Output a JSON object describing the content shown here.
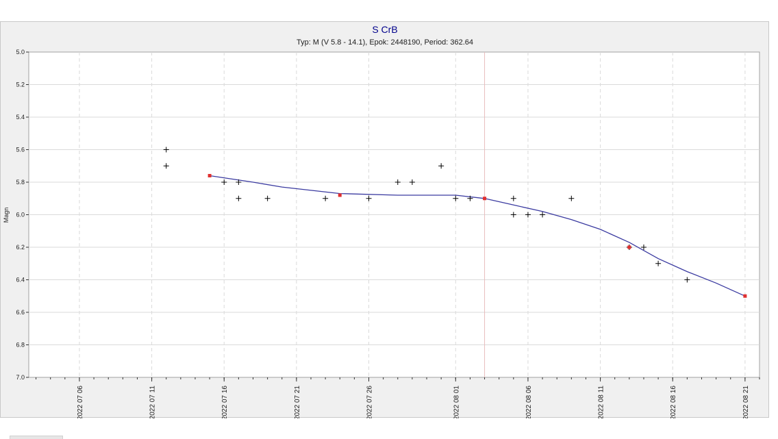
{
  "chart_data": {
    "type": "scatter",
    "title": "S CrB",
    "subtitle": "Typ: M (V 5.8 - 14.1), Epok: 2448190, Period: 362.64",
    "xlabel": "",
    "ylabel": "Magn",
    "x_scale": "date",
    "xlim": [
      "2022-07-02T12:00",
      "2022-08-22T00:00"
    ],
    "ylim": [
      5.0,
      7.0
    ],
    "y_inverted": true,
    "y_ticks": [
      "5.0",
      "5.2",
      "5.4",
      "5.6",
      "5.8",
      "6.0",
      "6.2",
      "6.4",
      "6.6",
      "6.8",
      "7.0"
    ],
    "x_ticks": [
      {
        "date": "2022-07-06",
        "label": "2022 07 06"
      },
      {
        "date": "2022-07-11",
        "label": "2022 07 11"
      },
      {
        "date": "2022-07-16",
        "label": "2022 07 16"
      },
      {
        "date": "2022-07-21",
        "label": "2022 07 21"
      },
      {
        "date": "2022-07-26",
        "label": "2022 07 26"
      },
      {
        "date": "2022-08-01",
        "label": "2022 08 01"
      },
      {
        "date": "2022-08-06",
        "label": "2022 08 06"
      },
      {
        "date": "2022-08-11",
        "label": "2022 08 11"
      },
      {
        "date": "2022-08-16",
        "label": "2022 08 16"
      },
      {
        "date": "2022-08-21",
        "label": "2022 08 21"
      }
    ],
    "highlight_date": "2022-08-03",
    "grid": true,
    "series": [
      {
        "marker": "plus",
        "color": "#000000",
        "points": [
          {
            "x": "2022-07-12",
            "y": 5.6
          },
          {
            "x": "2022-07-12",
            "y": 5.7
          },
          {
            "x": "2022-07-16",
            "y": 5.8
          },
          {
            "x": "2022-07-17",
            "y": 5.8
          },
          {
            "x": "2022-07-17",
            "y": 5.9
          },
          {
            "x": "2022-07-19",
            "y": 5.9
          },
          {
            "x": "2022-07-23",
            "y": 5.9
          },
          {
            "x": "2022-07-26",
            "y": 5.9
          },
          {
            "x": "2022-07-28",
            "y": 5.8
          },
          {
            "x": "2022-07-29",
            "y": 5.8
          },
          {
            "x": "2022-07-31",
            "y": 5.7
          },
          {
            "x": "2022-08-01",
            "y": 5.9
          },
          {
            "x": "2022-08-02",
            "y": 5.9
          },
          {
            "x": "2022-08-05",
            "y": 5.9
          },
          {
            "x": "2022-08-05",
            "y": 6.0
          },
          {
            "x": "2022-08-06",
            "y": 6.0
          },
          {
            "x": "2022-08-07",
            "y": 6.0
          },
          {
            "x": "2022-08-09",
            "y": 5.9
          },
          {
            "x": "2022-08-13",
            "y": 6.2
          },
          {
            "x": "2022-08-14",
            "y": 6.2
          },
          {
            "x": "2022-08-15",
            "y": 6.3
          },
          {
            "x": "2022-08-17",
            "y": 6.4
          }
        ]
      },
      {
        "marker": "square",
        "color": "#e03030",
        "points": [
          {
            "x": "2022-07-15",
            "y": 5.76
          },
          {
            "x": "2022-07-24",
            "y": 5.88
          },
          {
            "x": "2022-08-03",
            "y": 5.9
          },
          {
            "x": "2022-08-13",
            "y": 6.2
          },
          {
            "x": "2022-08-21",
            "y": 6.5
          }
        ]
      },
      {
        "type": "line",
        "color": "#3a3aa0",
        "points": [
          {
            "x": "2022-07-15",
            "y": 5.76
          },
          {
            "x": "2022-07-18",
            "y": 5.8
          },
          {
            "x": "2022-07-20",
            "y": 5.83
          },
          {
            "x": "2022-07-24",
            "y": 5.87
          },
          {
            "x": "2022-07-28",
            "y": 5.88
          },
          {
            "x": "2022-07-31",
            "y": 5.88
          },
          {
            "x": "2022-08-01",
            "y": 5.88
          },
          {
            "x": "2022-08-03",
            "y": 5.9
          },
          {
            "x": "2022-08-05",
            "y": 5.94
          },
          {
            "x": "2022-08-07",
            "y": 5.98
          },
          {
            "x": "2022-08-09",
            "y": 6.03
          },
          {
            "x": "2022-08-11",
            "y": 6.09
          },
          {
            "x": "2022-08-13",
            "y": 6.17
          },
          {
            "x": "2022-08-15",
            "y": 6.27
          },
          {
            "x": "2022-08-17",
            "y": 6.35
          },
          {
            "x": "2022-08-19",
            "y": 6.42
          },
          {
            "x": "2022-08-21",
            "y": 6.5
          }
        ]
      }
    ]
  },
  "colors": {
    "title": "#00008b",
    "text": "#202020",
    "grid": "#dadada",
    "highlight": "#e8bcbc",
    "axis": "#303030"
  }
}
